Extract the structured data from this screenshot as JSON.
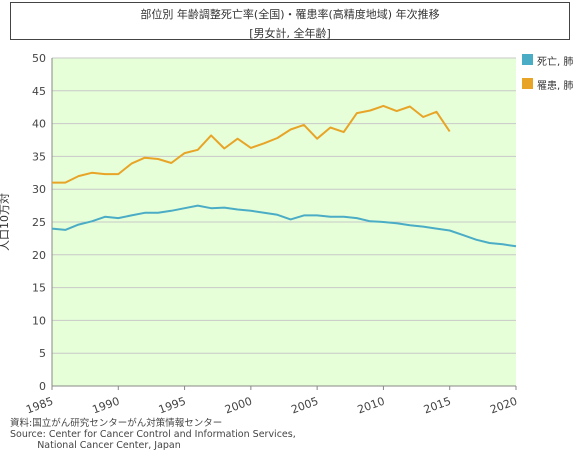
{
  "header": {
    "title": "部位別 年齢調整死亡率(全国)・罹患率(高精度地域) 年次推移",
    "subtitle": "[男女計, 全年齢]"
  },
  "source": {
    "line1": "資料:国立がん研究センターがん対策情報センター",
    "line2": "Source: Center for Cancer Control and Information Services,",
    "line3": "National Cancer Center, Japan"
  },
  "chart_data": {
    "type": "line",
    "title": "部位別 年齢調整死亡率(全国)・罹患率(高精度地域) 年次推移",
    "subtitle": "[男女計, 全年齢]",
    "xlabel": "",
    "ylabel": "人口10万対",
    "xlim": [
      1985,
      2020
    ],
    "ylim": [
      0,
      50
    ],
    "xticks": [
      1985,
      1990,
      1995,
      2000,
      2005,
      2010,
      2015,
      2020
    ],
    "yticks": [
      0,
      5,
      10,
      15,
      20,
      25,
      30,
      35,
      40,
      45,
      50
    ],
    "grid": true,
    "legend": "right",
    "plot_background": "#e6ffd9",
    "series": [
      {
        "name": "死亡, 肺",
        "color": "#4bacc6",
        "x": [
          1985,
          1986,
          1987,
          1988,
          1989,
          1990,
          1991,
          1992,
          1993,
          1994,
          1995,
          1996,
          1997,
          1998,
          1999,
          2000,
          2001,
          2002,
          2003,
          2004,
          2005,
          2006,
          2007,
          2008,
          2009,
          2010,
          2011,
          2012,
          2013,
          2014,
          2015,
          2016,
          2017,
          2018,
          2019,
          2020
        ],
        "y": [
          24.0,
          23.8,
          24.6,
          25.1,
          25.8,
          25.6,
          26.0,
          26.4,
          26.4,
          26.7,
          27.1,
          27.5,
          27.1,
          27.2,
          26.9,
          26.7,
          26.4,
          26.1,
          25.4,
          26.0,
          26.0,
          25.8,
          25.8,
          25.6,
          25.1,
          25.0,
          24.8,
          24.5,
          24.3,
          24.0,
          23.7,
          23.0,
          22.3,
          21.8,
          21.6,
          21.3
        ]
      },
      {
        "name": "罹患, 肺",
        "color": "#e8a427",
        "x": [
          1985,
          1986,
          1987,
          1988,
          1989,
          1990,
          1991,
          1992,
          1993,
          1994,
          1995,
          1996,
          1997,
          1998,
          1999,
          2000,
          2001,
          2002,
          2003,
          2004,
          2005,
          2006,
          2007,
          2008,
          2009,
          2010,
          2011,
          2012,
          2013,
          2014,
          2015
        ],
        "y": [
          31.0,
          31.0,
          32.0,
          32.5,
          32.3,
          32.3,
          33.9,
          34.8,
          34.6,
          34.0,
          35.5,
          36.0,
          38.2,
          36.2,
          37.7,
          36.3,
          37.0,
          37.8,
          39.1,
          39.8,
          37.7,
          39.4,
          38.7,
          41.6,
          42.0,
          42.7,
          41.9,
          42.6,
          41.0,
          41.8,
          38.8
        ]
      }
    ]
  }
}
